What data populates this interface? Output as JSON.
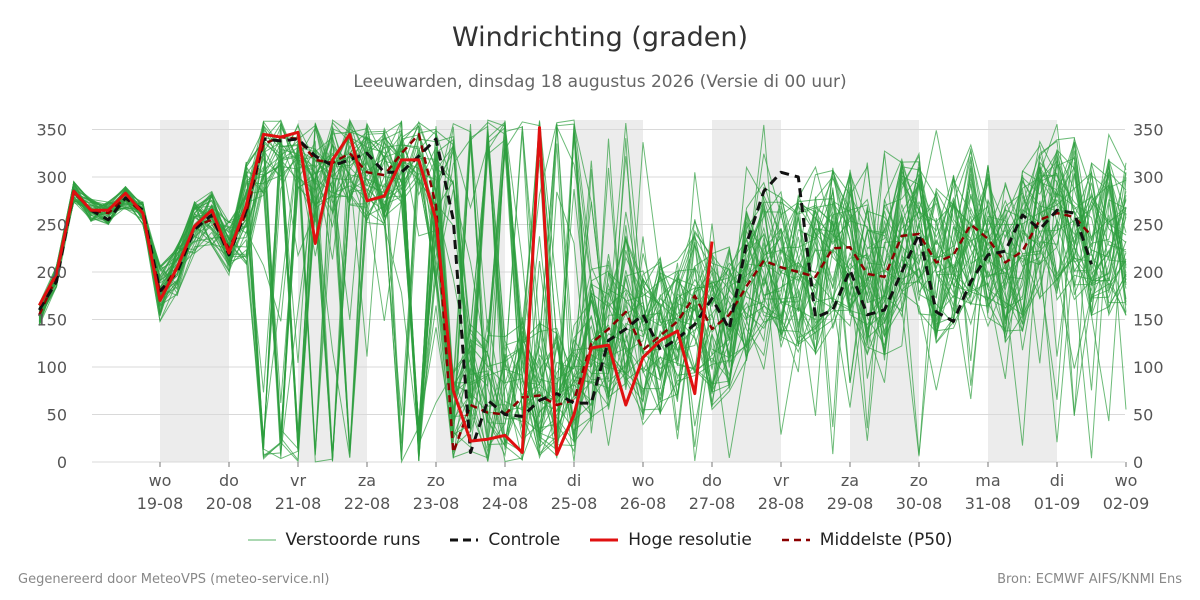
{
  "title": "Windrichting (graden)",
  "subtitle": "Leeuwarden, dinsdag 18 augustus 2026 (Versie di 00 uur)",
  "footer": {
    "generated": "Gegenereerd door MeteoVPS (meteo-service.nl)",
    "source": "Bron: ECMWF AIFS/KNMI Ens"
  },
  "legend": {
    "perturbed": "Verstoorde runs",
    "control": "Controle",
    "hires": "Hoge resolutie",
    "median": "Middelste (P50)"
  },
  "colors": {
    "perturbed": "#2e9e3e",
    "control": "#111111",
    "hires": "#e01010",
    "median": "#8b0000",
    "weekend_band": "#ececec",
    "grid": "#d9d9d9"
  },
  "chart_data": {
    "type": "line",
    "x_unit": "days since 2026-08-18 00:00",
    "xlim": [
      -0.75,
      15.0
    ],
    "ylim": [
      0,
      360
    ],
    "yticks": [
      0,
      50,
      100,
      150,
      200,
      250,
      300,
      350
    ],
    "grid": true,
    "legend_position": "bottom",
    "xticks": [
      {
        "x": 1,
        "day": "wo",
        "date": "19-08"
      },
      {
        "x": 2,
        "day": "do",
        "date": "20-08"
      },
      {
        "x": 3,
        "day": "vr",
        "date": "21-08"
      },
      {
        "x": 4,
        "day": "za",
        "date": "22-08"
      },
      {
        "x": 5,
        "day": "zo",
        "date": "23-08"
      },
      {
        "x": 6,
        "day": "ma",
        "date": "24-08"
      },
      {
        "x": 7,
        "day": "di",
        "date": "25-08"
      },
      {
        "x": 8,
        "day": "wo",
        "date": "26-08"
      },
      {
        "x": 9,
        "day": "do",
        "date": "27-08"
      },
      {
        "x": 10,
        "day": "vr",
        "date": "28-08"
      },
      {
        "x": 11,
        "day": "za",
        "date": "29-08"
      },
      {
        "x": 12,
        "day": "zo",
        "date": "30-08"
      },
      {
        "x": 13,
        "day": "ma",
        "date": "31-08"
      },
      {
        "x": 14,
        "day": "di",
        "date": "01-09"
      },
      {
        "x": 15,
        "day": "wo",
        "date": "02-09"
      }
    ],
    "shaded_bands": [
      [
        1,
        2
      ],
      [
        3,
        4
      ],
      [
        5,
        6
      ],
      [
        7,
        8
      ],
      [
        9,
        10
      ],
      [
        11,
        12
      ],
      [
        13,
        14
      ]
    ],
    "series": [
      {
        "name": "Controle",
        "style": "dashed",
        "points": [
          [
            -0.75,
            160
          ],
          [
            -0.5,
            190
          ],
          [
            -0.25,
            285
          ],
          [
            0,
            265
          ],
          [
            0.25,
            255
          ],
          [
            0.5,
            278
          ],
          [
            0.75,
            265
          ],
          [
            1,
            180
          ],
          [
            1.25,
            200
          ],
          [
            1.5,
            245
          ],
          [
            1.75,
            260
          ],
          [
            2,
            218
          ],
          [
            2.25,
            265
          ],
          [
            2.5,
            340
          ],
          [
            2.75,
            338
          ],
          [
            3,
            340
          ],
          [
            3.25,
            322
          ],
          [
            3.5,
            312
          ],
          [
            3.75,
            318
          ],
          [
            4,
            325
          ],
          [
            4.25,
            305
          ],
          [
            4.5,
            305
          ],
          [
            4.75,
            322
          ],
          [
            5,
            340
          ],
          [
            5.25,
            255
          ],
          [
            5.5,
            10
          ],
          [
            5.75,
            65
          ],
          [
            6,
            50
          ],
          [
            6.25,
            48
          ],
          [
            6.5,
            65
          ],
          [
            6.75,
            72
          ],
          [
            7,
            62
          ],
          [
            7.25,
            62
          ],
          [
            7.5,
            128
          ],
          [
            7.75,
            140
          ],
          [
            8,
            155
          ],
          [
            8.25,
            118
          ],
          [
            8.5,
            130
          ],
          [
            8.75,
            145
          ],
          [
            9,
            172
          ],
          [
            9.25,
            140
          ],
          [
            9.5,
            230
          ],
          [
            9.75,
            285
          ],
          [
            10,
            305
          ],
          [
            10.25,
            300
          ],
          [
            10.5,
            152
          ],
          [
            10.75,
            160
          ],
          [
            11,
            202
          ],
          [
            11.25,
            155
          ],
          [
            11.5,
            160
          ],
          [
            11.75,
            200
          ],
          [
            12,
            240
          ],
          [
            12.25,
            158
          ],
          [
            12.5,
            148
          ],
          [
            12.75,
            190
          ],
          [
            13,
            218
          ],
          [
            13.25,
            222
          ],
          [
            13.5,
            260
          ],
          [
            13.75,
            245
          ],
          [
            14,
            265
          ],
          [
            14.25,
            262
          ],
          [
            14.5,
            208
          ]
        ]
      },
      {
        "name": "Hoge resolutie",
        "style": "solid",
        "points": [
          [
            -0.75,
            165
          ],
          [
            -0.5,
            198
          ],
          [
            -0.25,
            285
          ],
          [
            0,
            265
          ],
          [
            0.25,
            265
          ],
          [
            0.5,
            283
          ],
          [
            0.75,
            262
          ],
          [
            1,
            170
          ],
          [
            1.25,
            205
          ],
          [
            1.5,
            248
          ],
          [
            1.75,
            265
          ],
          [
            2,
            220
          ],
          [
            2.25,
            270
          ],
          [
            2.5,
            345
          ],
          [
            2.75,
            342
          ],
          [
            3,
            347
          ],
          [
            3.25,
            230
          ],
          [
            3.5,
            318
          ],
          [
            3.75,
            345
          ],
          [
            4,
            275
          ],
          [
            4.25,
            280
          ],
          [
            4.5,
            318
          ],
          [
            4.75,
            318
          ],
          [
            5,
            255
          ],
          [
            5.25,
            75
          ],
          [
            5.5,
            22
          ],
          [
            5.75,
            24
          ],
          [
            6,
            28
          ],
          [
            6.25,
            10
          ],
          [
            6.5,
            352
          ],
          [
            6.75,
            8
          ],
          [
            7,
            50
          ],
          [
            7.25,
            120
          ],
          [
            7.5,
            123
          ],
          [
            7.75,
            60
          ],
          [
            8,
            110
          ],
          [
            8.25,
            128
          ],
          [
            8.5,
            138
          ],
          [
            8.75,
            72
          ],
          [
            9,
            232
          ]
        ]
      },
      {
        "name": "Middelste (P50)",
        "style": "dashed",
        "points": [
          [
            -0.75,
            155
          ],
          [
            -0.5,
            195
          ],
          [
            -0.25,
            284
          ],
          [
            0,
            265
          ],
          [
            0.25,
            262
          ],
          [
            0.5,
            278
          ],
          [
            0.75,
            262
          ],
          [
            1,
            178
          ],
          [
            1.25,
            205
          ],
          [
            1.5,
            248
          ],
          [
            1.75,
            255
          ],
          [
            2,
            225
          ],
          [
            2.25,
            262
          ],
          [
            2.5,
            335
          ],
          [
            2.75,
            342
          ],
          [
            3,
            340
          ],
          [
            3.25,
            318
          ],
          [
            3.5,
            315
          ],
          [
            3.75,
            325
          ],
          [
            4,
            305
          ],
          [
            4.25,
            302
          ],
          [
            4.5,
            325
          ],
          [
            4.75,
            345
          ],
          [
            5,
            270
          ],
          [
            5.25,
            10
          ],
          [
            5.5,
            60
          ],
          [
            5.75,
            52
          ],
          [
            6,
            50
          ],
          [
            6.25,
            68
          ],
          [
            6.5,
            70
          ],
          [
            6.75,
            60
          ],
          [
            7,
            65
          ],
          [
            7.25,
            125
          ],
          [
            7.5,
            140
          ],
          [
            7.75,
            158
          ],
          [
            8,
            118
          ],
          [
            8.25,
            133
          ],
          [
            8.5,
            148
          ],
          [
            8.75,
            175
          ],
          [
            9,
            140
          ],
          [
            9.25,
            155
          ],
          [
            9.5,
            185
          ],
          [
            9.75,
            212
          ],
          [
            10,
            205
          ],
          [
            10.25,
            200
          ],
          [
            10.5,
            195
          ],
          [
            10.75,
            225
          ],
          [
            11,
            226
          ],
          [
            11.25,
            198
          ],
          [
            11.5,
            195
          ],
          [
            11.75,
            238
          ],
          [
            12,
            240
          ],
          [
            12.25,
            210
          ],
          [
            12.5,
            218
          ],
          [
            12.75,
            250
          ],
          [
            13,
            235
          ],
          [
            13.25,
            210
          ],
          [
            13.5,
            222
          ],
          [
            13.75,
            255
          ],
          [
            14,
            262
          ],
          [
            14.25,
            258
          ],
          [
            14.5,
            238
          ]
        ]
      }
    ]
  }
}
